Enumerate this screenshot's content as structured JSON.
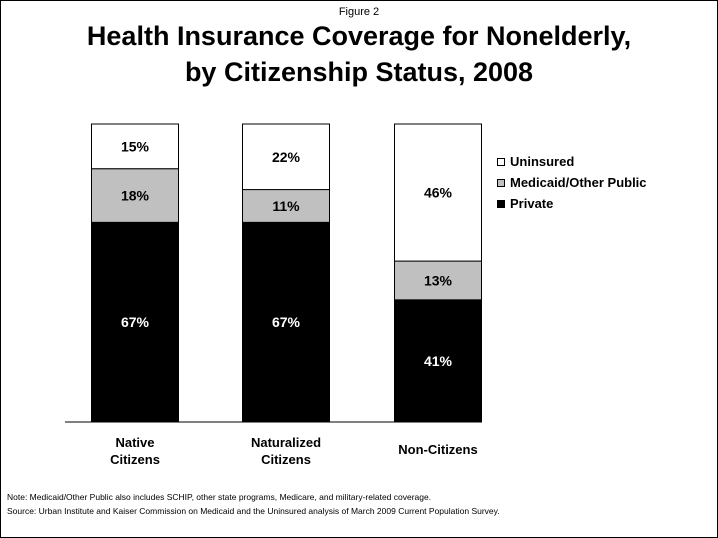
{
  "figure_label": "Figure 2",
  "title_line1": "Health Insurance Coverage for Nonelderly,",
  "title_line2": "by Citizenship Status, 2008",
  "note": "Note: Medicaid/Other Public also includes SCHIP, other state programs, Medicare, and military-related coverage.",
  "source": "Source: Urban Institute and Kaiser Commission on Medicaid and the Uninsured analysis of March 2009 Current Population Survey.",
  "chart_data": {
    "type": "bar",
    "stacked": true,
    "percent_stacked": true,
    "categories": [
      [
        "Native",
        "Citizens"
      ],
      [
        "Naturalized",
        "Citizens"
      ],
      [
        "Non-Citizens"
      ]
    ],
    "ylim": [
      0,
      100
    ],
    "grid": false,
    "legend_position": "right",
    "series": [
      {
        "name": "Private",
        "values": [
          67,
          67,
          41
        ],
        "labels": [
          "67%",
          "67%",
          "41%"
        ],
        "color": "#000000",
        "label_color": "#ffffff"
      },
      {
        "name": "Medicaid/Other Public",
        "values": [
          18,
          11,
          13
        ],
        "labels": [
          "18%",
          "11%",
          "13%"
        ],
        "color": "#c0c0c0",
        "label_color": "#000000"
      },
      {
        "name": "Uninsured",
        "values": [
          15,
          22,
          46
        ],
        "labels": [
          "15%",
          "22%",
          "46%"
        ],
        "color": "#ffffff",
        "label_color": "#000000"
      }
    ],
    "legend_order": [
      "Uninsured",
      "Medicaid/Other Public",
      "Private"
    ]
  }
}
